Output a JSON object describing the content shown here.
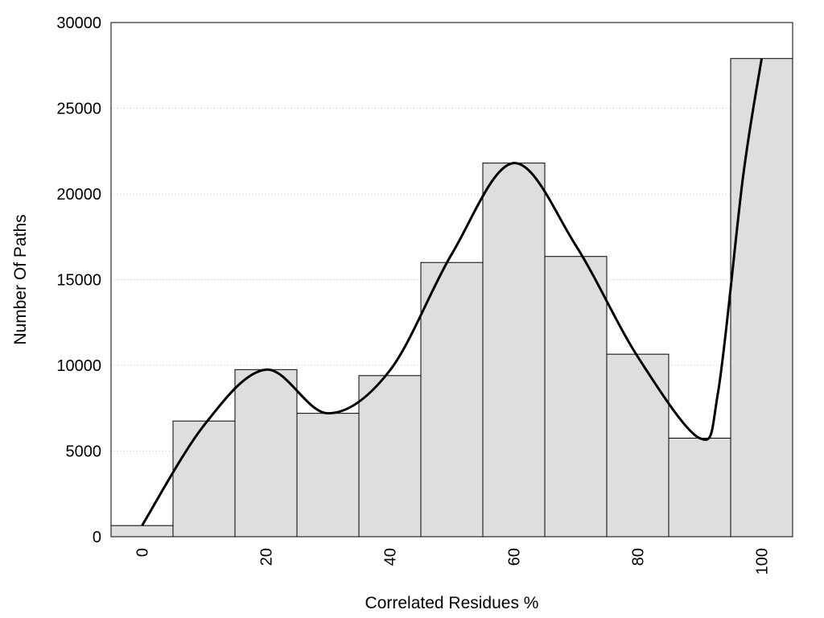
{
  "chart_data": {
    "type": "bar",
    "title": "",
    "xlabel": "Correlated Residues %",
    "ylabel": "Number Of Paths",
    "categories": [
      "0",
      "10",
      "20",
      "30",
      "40",
      "50",
      "60",
      "70",
      "80",
      "90",
      "100"
    ],
    "values": [
      650,
      6750,
      9750,
      7200,
      9400,
      16000,
      21800,
      16350,
      10650,
      5750,
      27900
    ],
    "x_tick_labels": [
      "0",
      "20",
      "40",
      "60",
      "80",
      "100"
    ],
    "y_tick_labels": [
      "0",
      "5000",
      "10000",
      "15000",
      "20000",
      "25000",
      "30000"
    ],
    "ylim": [
      0,
      30000
    ],
    "xlim": [
      -5,
      105
    ],
    "grid": "horizontal dotted",
    "bar_color": "#dedede",
    "bar_edge_color": "#000000",
    "curve": {
      "name": "",
      "x": [
        0,
        10,
        20,
        30,
        40,
        50,
        60,
        70,
        80,
        90,
        93,
        97,
        100
      ],
      "y": [
        650,
        6500,
        9750,
        7200,
        9700,
        16500,
        21800,
        17000,
        10500,
        5750,
        8500,
        21000,
        27900
      ],
      "color": "#000000"
    }
  }
}
